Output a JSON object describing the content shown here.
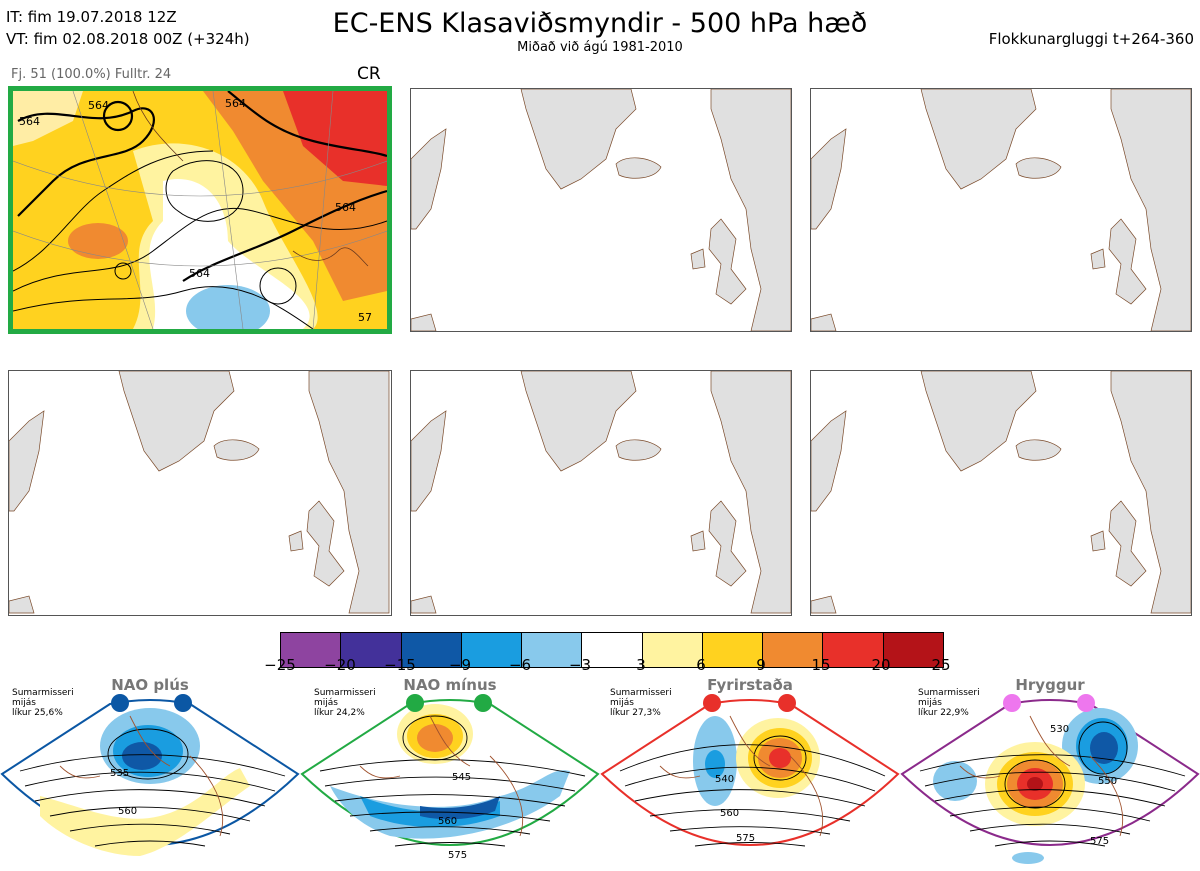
{
  "header": {
    "it_line": "IT: fim 19.07.2018 12Z",
    "vt_line": "VT: fim 02.08.2018 00Z  (+324h)",
    "title": "EC-ENS Klasaviðsmyndir - 500 hPa hæð",
    "subtitle": "Miðað við ágú 1981-2010",
    "window": "Flokkunargluggi t+264-360"
  },
  "panel1": {
    "meta": "Fj. 51 (100.0%)   Fulltr. 24",
    "regime_code": "CR",
    "contour_labels": [
      "564",
      "564",
      "564",
      "564",
      "564",
      "57"
    ]
  },
  "colorbar": {
    "colors": [
      "#8e44a0",
      "#43319a",
      "#0f58a6",
      "#1a9de0",
      "#88c9ec",
      "#ffffff",
      "#fff3a0",
      "#ffd21f",
      "#f08a30",
      "#e8302a",
      "#b41318"
    ],
    "ticks": [
      "−25",
      "−20",
      "−15",
      "−9",
      "−6",
      "−3",
      "3",
      "6",
      "9",
      "15",
      "20",
      "25"
    ]
  },
  "regimes": [
    {
      "name": "NAO plús",
      "season": "Sumarmisseri",
      "season2": "mijás",
      "prob": "líkur 25,6%",
      "color": "#0b57a4",
      "labels": [
        "535",
        "560"
      ]
    },
    {
      "name": "NAO mínus",
      "season": "Sumarmisseri",
      "season2": "mijás",
      "prob": "líkur 24,2%",
      "color": "#22aa44",
      "labels": [
        "545",
        "560",
        "575"
      ]
    },
    {
      "name": "Fyrirstaða",
      "season": "Sumarmisseri",
      "season2": "mijás",
      "prob": "líkur 27,3%",
      "color": "#e8302a",
      "labels": [
        "540",
        "560",
        "575"
      ]
    },
    {
      "name": "Hryggur",
      "season": "Sumarmisseri",
      "season2": "mijás",
      "prob": "líkur 22,9%",
      "color": "#ee77ee",
      "labels": [
        "530",
        "550",
        "575"
      ]
    }
  ]
}
